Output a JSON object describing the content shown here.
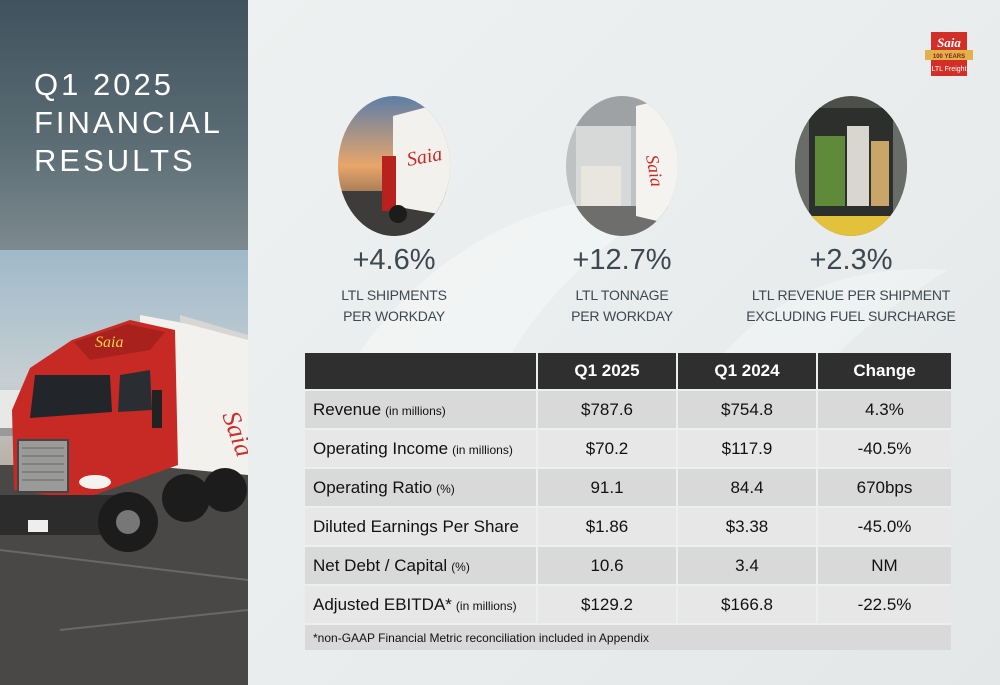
{
  "slide": {
    "title_lines": [
      "Q1 2025",
      "FINANCIAL",
      "RESULTS"
    ]
  },
  "logo": {
    "brand": "SAIA",
    "years": "100 YEARS",
    "tagline": "LTL Freight"
  },
  "kpis": [
    {
      "value": "+4.6%",
      "label_line1": "LTL SHIPMENTS",
      "label_line2": "PER WORKDAY"
    },
    {
      "value": "+12.7%",
      "label_line1": "LTL TONNAGE",
      "label_line2": "PER WORKDAY"
    },
    {
      "value": "+2.3%",
      "label_line1": "LTL REVENUE PER SHIPMENT",
      "label_line2": "EXCLUDING FUEL SURCHARGE"
    }
  ],
  "table": {
    "headers": [
      "",
      "Q1 2025",
      "Q1 2024",
      "Change"
    ],
    "rows": [
      {
        "metric": "Revenue",
        "unit": "(in millions)",
        "q1_2025": "$787.6",
        "q1_2024": "$754.8",
        "change": "4.3%"
      },
      {
        "metric": "Operating Income",
        "unit": "(in millions)",
        "q1_2025": "$70.2",
        "q1_2024": "$117.9",
        "change": "-40.5%"
      },
      {
        "metric": "Operating Ratio",
        "unit": "(%)",
        "q1_2025": "91.1",
        "q1_2024": "84.4",
        "change": "670bps"
      },
      {
        "metric": "Diluted Earnings Per Share",
        "unit": "",
        "q1_2025": "$1.86",
        "q1_2024": "$3.38",
        "change": "-45.0%"
      },
      {
        "metric": "Net Debt / Capital",
        "unit": "(%)",
        "q1_2025": "10.6",
        "q1_2024": "3.4",
        "change": "NM"
      },
      {
        "metric": "Adjusted EBITDA*",
        "unit": "(in millions)",
        "q1_2025": "$129.2",
        "q1_2024": "$166.8",
        "change": "-22.5%"
      }
    ],
    "footnote": "*non-GAAP Financial Metric reconciliation included in Appendix"
  },
  "colors": {
    "title_panel": "#40525d",
    "table_header": "#2f2f2f",
    "brand_red": "#d12f27"
  }
}
